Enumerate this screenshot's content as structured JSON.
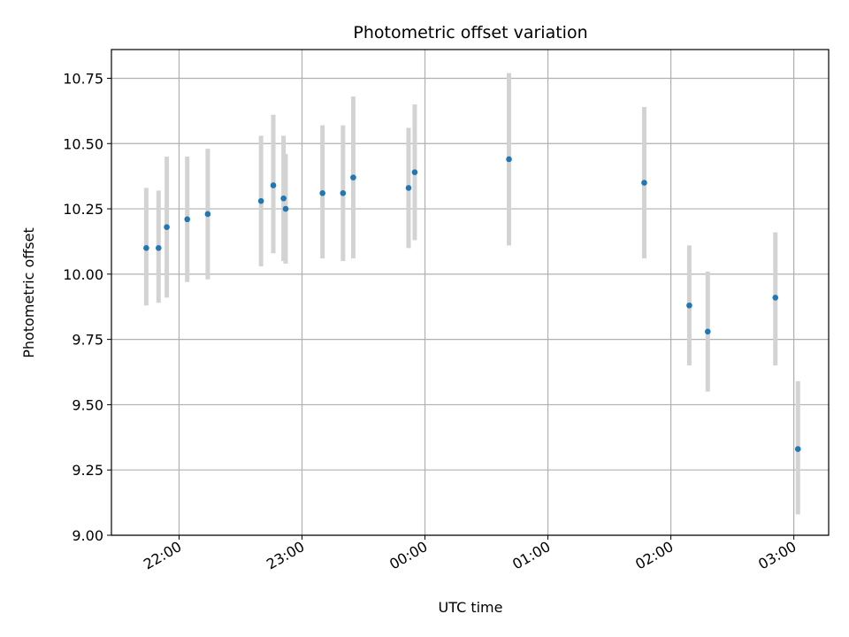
{
  "chart_data": {
    "type": "scatter",
    "title": "Photometric offset variation",
    "xlabel": "UTC time",
    "ylabel": "Photometric offset",
    "x_axis_type": "time",
    "xlim": [
      "21:27",
      "03:17"
    ],
    "ylim": [
      9.0,
      10.86
    ],
    "x_ticks": [
      "22:00",
      "23:00",
      "00:00",
      "01:00",
      "02:00",
      "03:00"
    ],
    "y_ticks": [
      "9.00",
      "9.25",
      "9.50",
      "9.75",
      "10.00",
      "10.25",
      "10.50",
      "10.75"
    ],
    "grid": true,
    "marker_color": "#1f77b4",
    "errorbar_color": "#d3d3d3",
    "points": [
      {
        "x": "21:44",
        "y": 10.1,
        "err_low": 9.88,
        "err_high": 10.33
      },
      {
        "x": "21:50",
        "y": 10.1,
        "err_low": 9.89,
        "err_high": 10.32
      },
      {
        "x": "21:54",
        "y": 10.18,
        "err_low": 9.91,
        "err_high": 10.45
      },
      {
        "x": "22:04",
        "y": 10.21,
        "err_low": 9.97,
        "err_high": 10.45
      },
      {
        "x": "22:14",
        "y": 10.23,
        "err_low": 9.98,
        "err_high": 10.48
      },
      {
        "x": "22:40",
        "y": 10.28,
        "err_low": 10.03,
        "err_high": 10.53
      },
      {
        "x": "22:46",
        "y": 10.34,
        "err_low": 10.08,
        "err_high": 10.61
      },
      {
        "x": "22:51",
        "y": 10.29,
        "err_low": 10.05,
        "err_high": 10.53
      },
      {
        "x": "22:52",
        "y": 10.25,
        "err_low": 10.04,
        "err_high": 10.46
      },
      {
        "x": "23:10",
        "y": 10.31,
        "err_low": 10.06,
        "err_high": 10.57
      },
      {
        "x": "23:20",
        "y": 10.31,
        "err_low": 10.05,
        "err_high": 10.57
      },
      {
        "x": "23:25",
        "y": 10.37,
        "err_low": 10.06,
        "err_high": 10.68
      },
      {
        "x": "23:52",
        "y": 10.33,
        "err_low": 10.1,
        "err_high": 10.56
      },
      {
        "x": "23:55",
        "y": 10.39,
        "err_low": 10.13,
        "err_high": 10.65
      },
      {
        "x": "00:41",
        "y": 10.44,
        "err_low": 10.11,
        "err_high": 10.77
      },
      {
        "x": "01:47",
        "y": 10.35,
        "err_low": 10.06,
        "err_high": 10.64
      },
      {
        "x": "02:09",
        "y": 9.88,
        "err_low": 9.65,
        "err_high": 10.11
      },
      {
        "x": "02:18",
        "y": 9.78,
        "err_low": 9.55,
        "err_high": 10.01
      },
      {
        "x": "02:51",
        "y": 9.91,
        "err_low": 9.65,
        "err_high": 10.16
      },
      {
        "x": "03:02",
        "y": 9.33,
        "err_low": 9.08,
        "err_high": 9.59
      }
    ]
  }
}
